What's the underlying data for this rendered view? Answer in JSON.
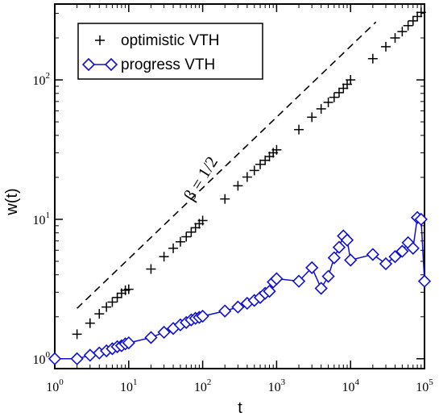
{
  "chart_data": {
    "type": "scatter",
    "xscale": "log",
    "yscale": "log",
    "xlim": [
      1,
      100000
    ],
    "ylim": [
      0.85,
      350
    ],
    "xlabel": "t",
    "ylabel": "w(t)",
    "xticks": [
      {
        "base": "10",
        "exp": "0",
        "value": 1
      },
      {
        "base": "10",
        "exp": "1",
        "value": 10
      },
      {
        "base": "10",
        "exp": "2",
        "value": 100
      },
      {
        "base": "10",
        "exp": "3",
        "value": 1000
      },
      {
        "base": "10",
        "exp": "4",
        "value": 10000
      },
      {
        "base": "10",
        "exp": "5",
        "value": 100000
      }
    ],
    "yticks": [
      {
        "base": "10",
        "exp": "0",
        "value": 1
      },
      {
        "base": "10",
        "exp": "1",
        "value": 10
      },
      {
        "base": "10",
        "exp": "2",
        "value": 100
      }
    ],
    "legend_position": "top-left",
    "series": [
      {
        "name": "optimistic VTH",
        "marker": "plus",
        "color": "#000000",
        "line": false,
        "x": [
          2,
          3,
          4,
          5,
          6,
          7,
          8,
          9,
          10,
          20,
          30,
          40,
          50,
          60,
          70,
          80,
          90,
          100,
          200,
          300,
          400,
          500,
          600,
          700,
          800,
          900,
          1000,
          2000,
          3000,
          4000,
          5000,
          6000,
          7000,
          8000,
          9000,
          10000,
          20000,
          30000,
          40000,
          50000,
          60000,
          70000,
          80000,
          90000
        ],
        "y": [
          1.5,
          1.8,
          2.1,
          2.35,
          2.55,
          2.75,
          2.95,
          3.1,
          3.15,
          4.4,
          5.4,
          6.2,
          6.9,
          7.5,
          8.1,
          8.7,
          9.3,
          9.8,
          14,
          17.4,
          20.1,
          22.4,
          24.8,
          26.5,
          28.2,
          30,
          31.5,
          44,
          54,
          62,
          69,
          75,
          81,
          87,
          93,
          100,
          142,
          173,
          200,
          222,
          245,
          265,
          285,
          305
        ]
      },
      {
        "name": "progress VTH",
        "marker": "diamond",
        "color": "#1010d0",
        "line": true,
        "x": [
          1,
          2,
          3,
          4,
          5,
          6,
          7,
          8,
          9,
          10,
          20,
          30,
          40,
          50,
          60,
          70,
          80,
          90,
          100,
          200,
          300,
          400,
          500,
          600,
          700,
          800,
          900,
          1000,
          2000,
          3000,
          4000,
          5000,
          6000,
          7000,
          8000,
          9000,
          10000,
          20000,
          30000,
          40000,
          50000,
          60000,
          70000,
          80000,
          90000,
          100000
        ],
        "y": [
          1.0,
          1.0,
          1.06,
          1.1,
          1.14,
          1.18,
          1.22,
          1.24,
          1.28,
          1.3,
          1.42,
          1.55,
          1.65,
          1.75,
          1.82,
          1.9,
          1.95,
          1.98,
          2.02,
          2.2,
          2.35,
          2.5,
          2.62,
          2.75,
          2.95,
          3.05,
          3.55,
          3.75,
          3.6,
          4.5,
          3.2,
          3.9,
          5.3,
          6.3,
          7.6,
          7.1,
          5.1,
          5.6,
          4.8,
          5.4,
          5.9,
          6.8,
          6.2,
          10.3,
          10,
          3.6
        ]
      }
    ],
    "guide_line": {
      "style": "dashed",
      "x": [
        2,
        22000
      ],
      "y": [
        2.3,
        260
      ]
    },
    "annotations": [
      {
        "text": "β = 1/2",
        "x": 200,
        "y": 22
      }
    ]
  }
}
